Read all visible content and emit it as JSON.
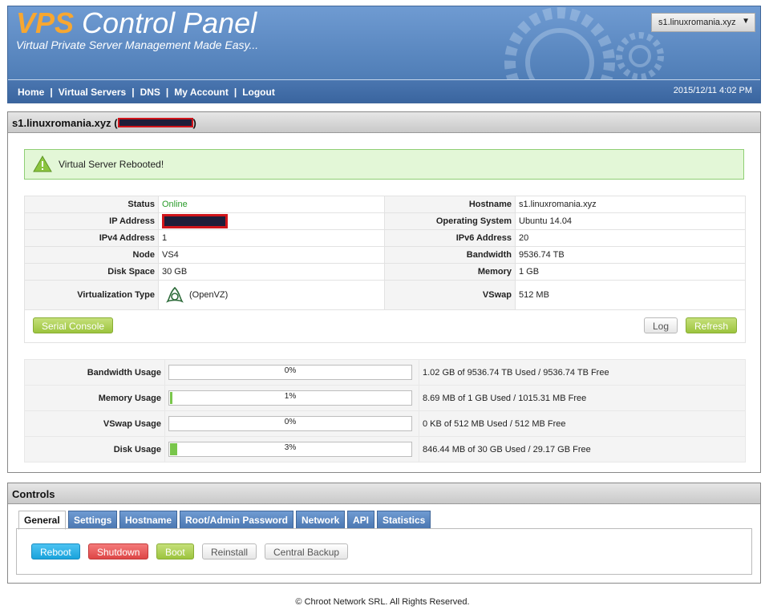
{
  "header": {
    "logo_vps": "VPS",
    "logo_rest": " Control Panel",
    "tagline": "Virtual Private Server Management Made Easy...",
    "server_select": "s1.linuxromania.xyz",
    "nav": [
      "Home",
      "Virtual Servers",
      "DNS",
      "My Account",
      "Logout"
    ],
    "nav_sep": "|",
    "datetime": "2015/12/11 4:02 PM"
  },
  "server_panel": {
    "title": "s1.linuxromania.xyz",
    "paren_open": "(",
    "paren_close": ")",
    "alert": "Virtual Server Rebooted!",
    "info": {
      "status_label": "Status",
      "status": "Online",
      "hostname_label": "Hostname",
      "hostname": "s1.linuxromania.xyz",
      "ip_label": "IP Address",
      "os_label": "Operating System",
      "os": "Ubuntu 14.04",
      "ipv4_label": "IPv4 Address",
      "ipv4": "1",
      "ipv6_label": "IPv6 Address",
      "ipv6": "20",
      "node_label": "Node",
      "node": "VS4",
      "bandwidth_label": "Bandwidth",
      "bandwidth": "9536.74 TB",
      "disk_label": "Disk Space",
      "disk": "30 GB",
      "memory_label": "Memory",
      "memory": "1 GB",
      "virt_label": "Virtualization Type",
      "virt": "(OpenVZ)",
      "vswap_label": "VSwap",
      "vswap": "512 MB"
    },
    "buttons": {
      "serial_console": "Serial Console",
      "log": "Log",
      "refresh": "Refresh"
    },
    "usage": [
      {
        "label": "Bandwidth Usage",
        "percent": 0,
        "percent_text": "0%",
        "detail": "1.02 GB of 9536.74 TB Used / 9536.74 TB Free"
      },
      {
        "label": "Memory Usage",
        "percent": 1,
        "percent_text": "1%",
        "detail": "8.69 MB of 1 GB Used / 1015.31 MB Free"
      },
      {
        "label": "VSwap Usage",
        "percent": 0,
        "percent_text": "0%",
        "detail": "0 KB of 512 MB Used / 512 MB Free"
      },
      {
        "label": "Disk Usage",
        "percent": 3,
        "percent_text": "3%",
        "detail": "846.44 MB of 30 GB Used / 29.17 GB Free"
      }
    ]
  },
  "controls": {
    "title": "Controls",
    "tabs": [
      "General",
      "Settings",
      "Hostname",
      "Root/Admin Password",
      "Network",
      "API",
      "Statistics"
    ],
    "buttons": {
      "reboot": "Reboot",
      "shutdown": "Shutdown",
      "boot": "Boot",
      "reinstall": "Reinstall",
      "central_backup": "Central Backup"
    }
  },
  "footer": "© Chroot Network SRL. All Rights Reserved.",
  "colors": {
    "header_blue": "#5b86bd",
    "logo_orange": "#f7a731",
    "online_green": "#2a9c2a",
    "bar_green": "#79c64b",
    "redaction_red": "#d0141a"
  }
}
